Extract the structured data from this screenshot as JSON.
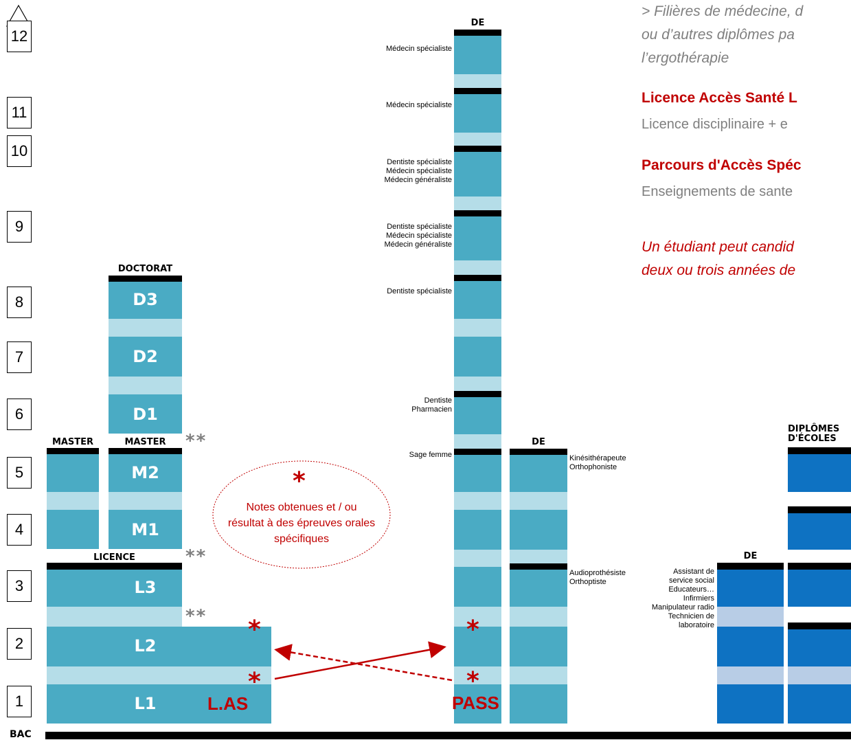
{
  "years": [
    "12",
    "11",
    "10",
    "9",
    "8",
    "7",
    "6",
    "5",
    "4",
    "3",
    "2",
    "1"
  ],
  "bac_label": "BAC",
  "headers": {
    "doctorat": "DOCTORAT",
    "master_left": "MASTER",
    "master_right": "MASTER",
    "licence": "LICENCE",
    "de_main": "DE",
    "de_second": "DE",
    "de_third": "DE",
    "diplomes_ecoles": [
      "DIPLÔMES",
      "D'ÉCOLES"
    ]
  },
  "levels": {
    "d3": "D3",
    "d2": "D2",
    "d1": "D1",
    "m2": "M2",
    "m1": "M1",
    "l3": "L3",
    "l2": "L2",
    "l1": "L1"
  },
  "las_label": "L.AS",
  "pass_label": "PASS",
  "ellipse": {
    "star": "*",
    "text": [
      "Notes obtenues et / ou",
      "résultat à des épreuves orales",
      "spécifiques"
    ]
  },
  "marks": {
    "red_star": "*",
    "grey_stars": "**"
  },
  "jobs_main": [
    {
      "lines": [
        "Médecin spécialiste"
      ]
    },
    {
      "lines": [
        "Médecin spécialiste"
      ]
    },
    {
      "lines": [
        "Dentiste spécialiste",
        "Médecin spécialiste",
        "Médecin généraliste"
      ]
    },
    {
      "lines": [
        "Dentiste spécialiste",
        "Médecin spécialiste",
        "Médecin généraliste"
      ]
    },
    {
      "lines": [
        "Dentiste spécialiste"
      ]
    },
    {
      "lines": [
        "Dentiste",
        "Pharmacien"
      ]
    },
    {
      "lines": [
        "Sage femme"
      ]
    }
  ],
  "jobs_second": [
    {
      "lines": [
        "Kinésithérapeute",
        "Orthophoniste"
      ]
    },
    {
      "lines": [
        "Audioprothésiste",
        "Orthoptiste"
      ]
    }
  ],
  "jobs_third": {
    "lines": [
      "Assistant de",
      "service social",
      "Educateurs…",
      "Infirmiers",
      "Manipulateur radio",
      "Technicien de",
      "laboratoire"
    ]
  },
  "legend": {
    "intro": [
      "> Filières de médecine, d",
      "ou d’autres diplômes pa",
      "l’ergothérapie"
    ],
    "las_title": "Licence Accès Santé L",
    "las_desc": "Licence disciplinaire + e",
    "pass_title": "Parcours d'Accès Spéc",
    "pass_desc": "Enseignements de sante",
    "note": [
      "Un étudiant peut candid",
      "deux ou trois années de"
    ]
  },
  "colors": {
    "teal_dark": "#4aabc4",
    "teal_light": "#b5dde8",
    "blue_dark": "#0e72c2",
    "blue_light": "#b8cde6",
    "red": "#c00000",
    "grey": "#7f7f7f"
  }
}
